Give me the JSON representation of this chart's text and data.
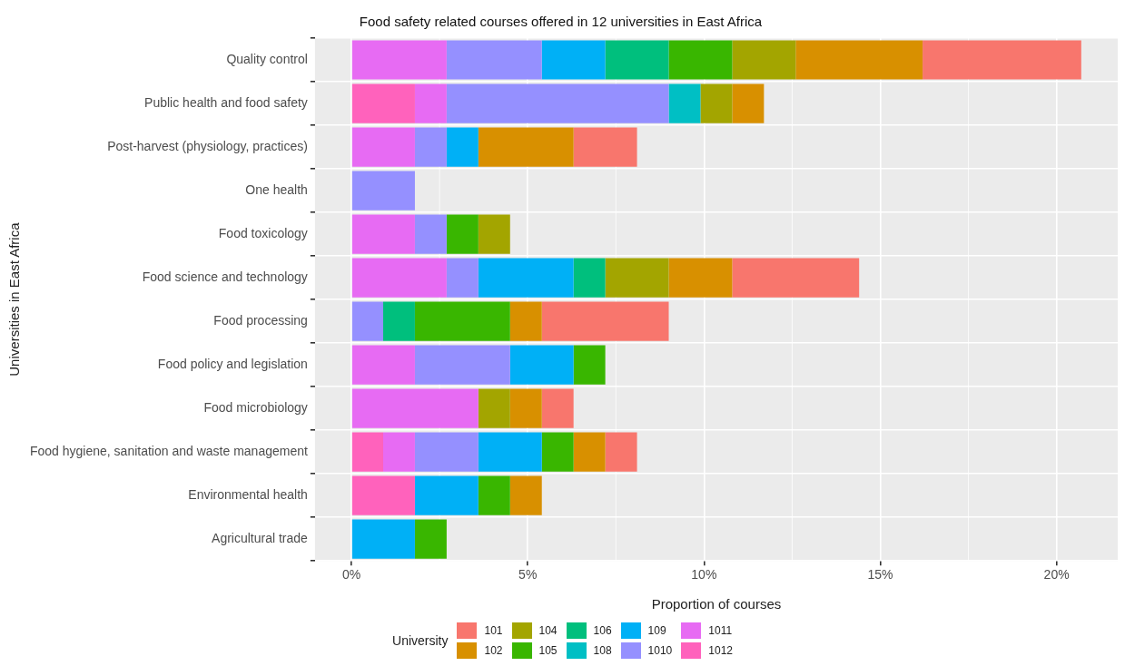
{
  "chart_data": {
    "type": "bar",
    "orientation": "horizontal",
    "stacked": true,
    "title": "Food safety related courses offered in 12 universities in East Africa",
    "xlabel": "Proportion of courses",
    "ylabel": "Universities in East Africa",
    "legend_title": "University",
    "legend": "bottom",
    "grid": true,
    "categories": [
      "Quality control",
      "Public health and food safety",
      "Post-harvest (physiology, practices)",
      "One health",
      "Food toxicology",
      "Food science and technology",
      "Food processing",
      "Food policy and legislation",
      "Food microbiology",
      "Food hygiene, sanitation and waste management",
      "Environmental health",
      "Agricultural trade"
    ],
    "xlim": [
      -1.035,
      21.735
    ],
    "xticks": [
      {
        "value": 0,
        "label": "0%"
      },
      {
        "value": 5,
        "label": "5%"
      },
      {
        "value": 10,
        "label": "10%"
      },
      {
        "value": 15,
        "label": "15%"
      },
      {
        "value": 20,
        "label": "20%"
      }
    ],
    "series": [
      {
        "name": "1012",
        "color": "#ff62bc",
        "values": [
          null,
          1.8,
          null,
          null,
          null,
          null,
          null,
          null,
          null,
          0.9,
          1.8,
          null
        ]
      },
      {
        "name": "1011",
        "color": "#e76bf3",
        "values": [
          2.7,
          0.9,
          1.8,
          null,
          1.8,
          2.7,
          null,
          1.8,
          3.6,
          0.9,
          null,
          null
        ]
      },
      {
        "name": "1010",
        "color": "#9590ff",
        "values": [
          2.7,
          6.3,
          0.9,
          1.8,
          0.9,
          0.9,
          0.9,
          2.7,
          null,
          1.8,
          null,
          null
        ]
      },
      {
        "name": "109",
        "color": "#00b0f6",
        "values": [
          1.8,
          null,
          0.9,
          null,
          null,
          2.7,
          null,
          1.8,
          null,
          1.8,
          1.8,
          1.8
        ]
      },
      {
        "name": "108",
        "color": "#00bfc4",
        "values": [
          null,
          0.9,
          null,
          null,
          null,
          null,
          null,
          null,
          null,
          null,
          null,
          null
        ]
      },
      {
        "name": "106",
        "color": "#00bf7d",
        "values": [
          1.8,
          null,
          null,
          null,
          null,
          0.9,
          0.9,
          null,
          null,
          null,
          null,
          null
        ]
      },
      {
        "name": "105",
        "color": "#39b600",
        "values": [
          1.8,
          null,
          null,
          null,
          0.9,
          null,
          2.7,
          0.9,
          null,
          0.9,
          0.9,
          0.9
        ]
      },
      {
        "name": "104",
        "color": "#a3a500",
        "values": [
          1.8,
          0.9,
          null,
          null,
          0.9,
          1.8,
          null,
          null,
          0.9,
          null,
          null,
          null
        ]
      },
      {
        "name": "102",
        "color": "#d89000",
        "values": [
          3.6,
          0.9,
          2.7,
          null,
          null,
          1.8,
          0.9,
          null,
          0.9,
          0.9,
          0.9,
          null
        ]
      },
      {
        "name": "101",
        "color": "#f8766d",
        "values": [
          4.5,
          null,
          1.8,
          null,
          null,
          3.6,
          3.6,
          null,
          0.9,
          0.9,
          null,
          null
        ]
      }
    ]
  }
}
